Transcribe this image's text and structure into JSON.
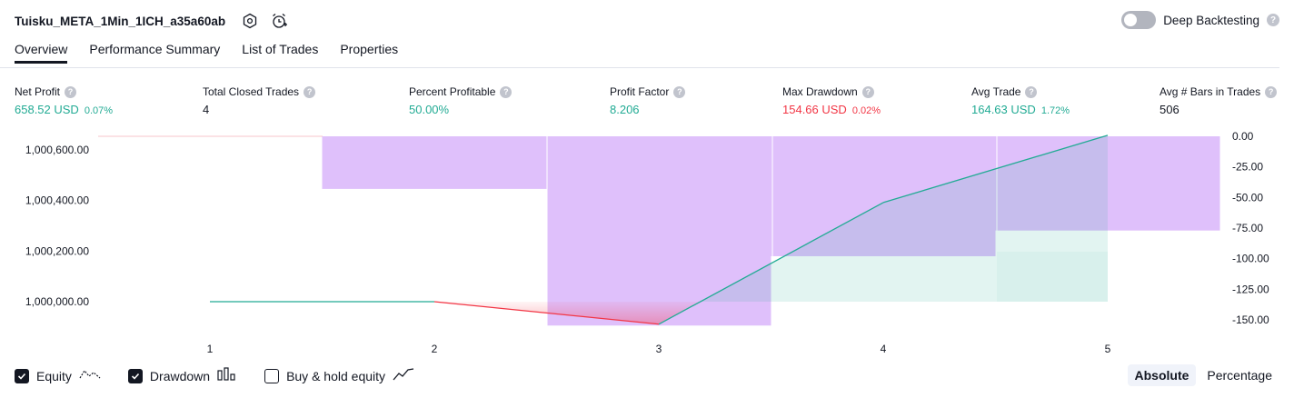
{
  "header": {
    "strategy_name": "Tuisku_META_1Min_1ICH_a35a60ab",
    "settings_icon": "settings-hex-icon",
    "alert_icon": "alarm-clock-plus-icon",
    "deep_backtesting_label": "Deep Backtesting",
    "deep_backtesting_enabled": false,
    "help_glyph": "?"
  },
  "tabs": [
    {
      "label": "Overview",
      "active": true
    },
    {
      "label": "Performance Summary",
      "active": false
    },
    {
      "label": "List of Trades",
      "active": false
    },
    {
      "label": "Properties",
      "active": false
    }
  ],
  "metrics": [
    {
      "label": "Net Profit",
      "value": "658.52 USD",
      "sub": "0.07%",
      "tone": "green"
    },
    {
      "label": "Total Closed Trades",
      "value": "4",
      "sub": "",
      "tone": "dark"
    },
    {
      "label": "Percent Profitable",
      "value": "50.00%",
      "sub": "",
      "tone": "green"
    },
    {
      "label": "Profit Factor",
      "value": "8.206",
      "sub": "",
      "tone": "green"
    },
    {
      "label": "Max Drawdown",
      "value": "154.66 USD",
      "sub": "0.02%",
      "tone": "red"
    },
    {
      "label": "Avg Trade",
      "value": "164.63 USD",
      "sub": "1.72%",
      "tone": "green"
    },
    {
      "label": "Avg # Bars in Trades",
      "value": "506",
      "sub": "",
      "tone": "dark"
    }
  ],
  "chart_data": {
    "type": "line",
    "x": [
      1,
      2,
      3,
      4,
      5
    ],
    "x_tick_labels": [
      "1",
      "2",
      "3",
      "4",
      "5"
    ],
    "left_axis": {
      "ticks": [
        1000000,
        1000200,
        1000400,
        1000600
      ],
      "tick_labels": [
        "1,000,000.00",
        "1,000,200.00",
        "1,000,400.00",
        "1,000,600.00"
      ],
      "range": [
        999910,
        1000650
      ]
    },
    "right_axis": {
      "ticks": [
        0,
        -25,
        -50,
        -75,
        -100,
        -125,
        -150
      ],
      "tick_labels": [
        "0.00",
        "-25.00",
        "-50.00",
        "-75.00",
        "-100.00",
        "-125.00",
        "-150.00"
      ],
      "range": [
        -158,
        0
      ]
    },
    "series": [
      {
        "name": "Equity",
        "axis": "left",
        "values": [
          1000000,
          1000000,
          999911,
          1000392,
          1000658
        ],
        "colors": {
          "up": "#22ab94",
          "down": "#f23645"
        }
      },
      {
        "name": "Drawdown",
        "axis": "right",
        "kind": "bar",
        "categories": [
          1,
          2,
          3,
          4,
          5
        ],
        "values": [
          0,
          -43,
          -154.66,
          -98,
          -77
        ],
        "color": "#c58cf8"
      }
    ],
    "grid": false
  },
  "legend": [
    {
      "label": "Equity",
      "checked": true,
      "icon": "equity-line-icon"
    },
    {
      "label": "Drawdown",
      "checked": true,
      "icon": "drawdown-bars-icon"
    },
    {
      "label": "Buy & hold equity",
      "checked": false,
      "icon": "buy-hold-line-icon"
    }
  ],
  "mode_buttons": [
    {
      "label": "Absolute",
      "active": true
    },
    {
      "label": "Percentage",
      "active": false
    }
  ],
  "colors": {
    "green": "#22ab94",
    "red": "#f23645",
    "drawdown": "#c58cf8",
    "text": "#131722"
  }
}
